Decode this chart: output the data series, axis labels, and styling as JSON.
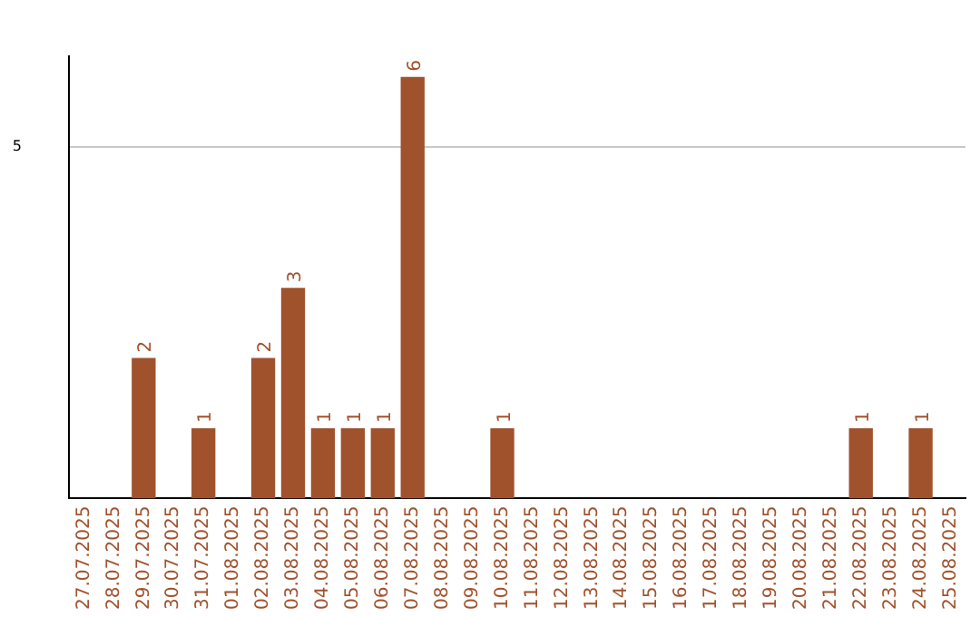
{
  "chart_data": {
    "type": "bar",
    "categories": [
      "27.07.2025",
      "28.07.2025",
      "29.07.2025",
      "30.07.2025",
      "31.07.2025",
      "01.08.2025",
      "02.08.2025",
      "03.08.2025",
      "04.08.2025",
      "05.08.2025",
      "06.08.2025",
      "07.08.2025",
      "08.08.2025",
      "09.08.2025",
      "10.08.2025",
      "11.08.2025",
      "12.08.2025",
      "13.08.2025",
      "14.08.2025",
      "15.08.2025",
      "16.08.2025",
      "17.08.2025",
      "18.08.2025",
      "19.08.2025",
      "20.08.2025",
      "21.08.2025",
      "22.08.2025",
      "23.08.2025",
      "24.08.2025",
      "25.08.2025"
    ],
    "values": [
      0,
      0,
      2,
      0,
      1,
      0,
      2,
      3,
      1,
      1,
      1,
      6,
      0,
      0,
      1,
      0,
      0,
      0,
      0,
      0,
      0,
      0,
      0,
      0,
      0,
      0,
      1,
      0,
      1,
      0
    ],
    "value_labels": [
      null,
      null,
      "2",
      null,
      "1",
      null,
      "2",
      "3",
      "1",
      "1",
      "1",
      "6",
      null,
      null,
      "1",
      null,
      null,
      null,
      null,
      null,
      null,
      null,
      null,
      null,
      null,
      null,
      "1",
      null,
      "1",
      null
    ],
    "color": "#a0522d",
    "ylim": [
      0,
      6.3
    ],
    "yticks": [
      5
    ],
    "grid": "y",
    "legend": false
  }
}
